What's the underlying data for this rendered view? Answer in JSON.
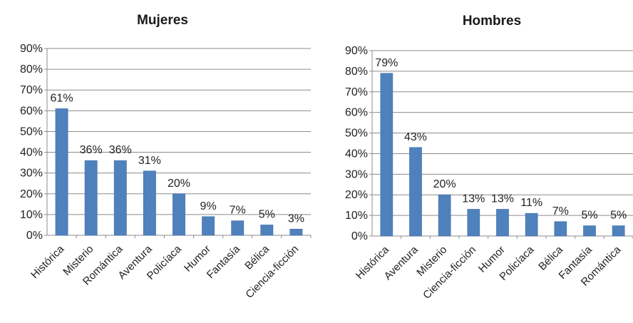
{
  "chart_data": [
    {
      "type": "bar",
      "title": "Mujeres",
      "categories": [
        "Histórica",
        "Misterio",
        "Romántica",
        "Aventura",
        "Policíaca",
        "Humor",
        "Fantasía",
        "Bélica",
        "Ciencia-ficción"
      ],
      "values": [
        61,
        36,
        36,
        31,
        20,
        9,
        7,
        5,
        3
      ],
      "data_labels": [
        "61%",
        "36%",
        "36%",
        "31%",
        "20%",
        "9%",
        "7%",
        "5%",
        "3%"
      ],
      "y_ticks": [
        "0%",
        "10%",
        "20%",
        "30%",
        "40%",
        "50%",
        "60%",
        "70%",
        "80%",
        "90%"
      ],
      "ylim": [
        0,
        90
      ],
      "grid": true,
      "bar_color": "#4f81bd"
    },
    {
      "type": "bar",
      "title": "Hombres",
      "categories": [
        "Histórica",
        "Aventura",
        "Misterio",
        "Ciencia-ficción",
        "Humor",
        "Policíaca",
        "Bélica",
        "Fantasía",
        "Romántica"
      ],
      "values": [
        79,
        43,
        20,
        13,
        13,
        11,
        7,
        5,
        5
      ],
      "data_labels": [
        "79%",
        "43%",
        "20%",
        "13%",
        "13%",
        "11%",
        "7%",
        "5%",
        "5%"
      ],
      "y_ticks": [
        "0%",
        "10%",
        "20%",
        "30%",
        "40%",
        "50%",
        "60%",
        "70%",
        "80%",
        "90%"
      ],
      "ylim": [
        0,
        90
      ],
      "grid": true,
      "bar_color": "#4f81bd"
    }
  ]
}
